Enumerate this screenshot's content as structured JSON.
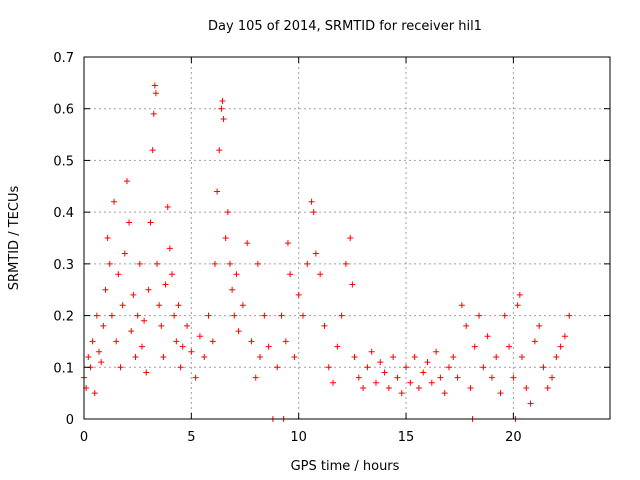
{
  "chart_data": {
    "type": "scatter",
    "title": "Day 105 of 2014, SRMTID for receiver hil1",
    "xlabel": "GPS time / hours",
    "ylabel": "SRMTID / TECUs",
    "xlim": [
      0,
      24.5
    ],
    "ylim": [
      0,
      0.7
    ],
    "xticks": [
      0,
      5,
      10,
      15,
      20
    ],
    "xtick_labels": [
      "0",
      "5",
      "10",
      "15",
      "20"
    ],
    "yticks": [
      0,
      0.1,
      0.2,
      0.3,
      0.4,
      0.5,
      0.6,
      0.7
    ],
    "ytick_labels": [
      "0",
      "0.1",
      "0.2",
      "0.3",
      "0.4",
      "0.5",
      "0.6",
      "0.7"
    ],
    "grid": true,
    "marker": "+",
    "series": [
      {
        "name": "SRMTID",
        "color": "#ff0000",
        "points": [
          [
            0.0,
            0.08
          ],
          [
            0.1,
            0.06
          ],
          [
            0.2,
            0.12
          ],
          [
            0.3,
            0.1
          ],
          [
            0.4,
            0.15
          ],
          [
            0.5,
            0.05
          ],
          [
            0.6,
            0.2
          ],
          [
            0.7,
            0.13
          ],
          [
            0.8,
            0.11
          ],
          [
            0.9,
            0.18
          ],
          [
            1.0,
            0.25
          ],
          [
            1.1,
            0.35
          ],
          [
            1.2,
            0.3
          ],
          [
            1.3,
            0.2
          ],
          [
            1.4,
            0.42
          ],
          [
            1.5,
            0.15
          ],
          [
            1.6,
            0.28
          ],
          [
            1.7,
            0.1
          ],
          [
            1.8,
            0.22
          ],
          [
            1.9,
            0.32
          ],
          [
            2.0,
            0.46
          ],
          [
            2.1,
            0.38
          ],
          [
            2.2,
            0.17
          ],
          [
            2.3,
            0.24
          ],
          [
            2.4,
            0.12
          ],
          [
            2.5,
            0.2
          ],
          [
            2.6,
            0.3
          ],
          [
            2.7,
            0.14
          ],
          [
            2.8,
            0.19
          ],
          [
            2.9,
            0.09
          ],
          [
            3.0,
            0.25
          ],
          [
            3.1,
            0.38
          ],
          [
            3.2,
            0.52
          ],
          [
            3.25,
            0.59
          ],
          [
            3.3,
            0.645
          ],
          [
            3.35,
            0.63
          ],
          [
            3.4,
            0.3
          ],
          [
            3.5,
            0.22
          ],
          [
            3.6,
            0.18
          ],
          [
            3.7,
            0.12
          ],
          [
            3.8,
            0.26
          ],
          [
            3.9,
            0.41
          ],
          [
            4.0,
            0.33
          ],
          [
            4.1,
            0.28
          ],
          [
            4.2,
            0.2
          ],
          [
            4.3,
            0.15
          ],
          [
            4.4,
            0.22
          ],
          [
            4.5,
            0.1
          ],
          [
            4.6,
            0.14
          ],
          [
            4.8,
            0.18
          ],
          [
            5.0,
            0.13
          ],
          [
            5.2,
            0.08
          ],
          [
            5.4,
            0.16
          ],
          [
            5.6,
            0.12
          ],
          [
            5.8,
            0.2
          ],
          [
            6.0,
            0.15
          ],
          [
            6.1,
            0.3
          ],
          [
            6.2,
            0.44
          ],
          [
            6.3,
            0.52
          ],
          [
            6.4,
            0.6
          ],
          [
            6.45,
            0.615
          ],
          [
            6.5,
            0.58
          ],
          [
            6.6,
            0.35
          ],
          [
            6.7,
            0.4
          ],
          [
            6.8,
            0.3
          ],
          [
            6.9,
            0.25
          ],
          [
            7.0,
            0.2
          ],
          [
            7.1,
            0.28
          ],
          [
            7.2,
            0.17
          ],
          [
            7.4,
            0.22
          ],
          [
            7.6,
            0.34
          ],
          [
            7.8,
            0.15
          ],
          [
            8.0,
            0.08
          ],
          [
            8.1,
            0.3
          ],
          [
            8.2,
            0.12
          ],
          [
            8.4,
            0.2
          ],
          [
            8.6,
            0.14
          ],
          [
            8.8,
            0.0
          ],
          [
            9.0,
            0.1
          ],
          [
            9.2,
            0.2
          ],
          [
            9.3,
            0.0
          ],
          [
            9.4,
            0.15
          ],
          [
            9.5,
            0.34
          ],
          [
            9.6,
            0.28
          ],
          [
            9.8,
            0.12
          ],
          [
            10.0,
            0.24
          ],
          [
            10.2,
            0.2
          ],
          [
            10.4,
            0.3
          ],
          [
            10.6,
            0.42
          ],
          [
            10.7,
            0.4
          ],
          [
            10.8,
            0.32
          ],
          [
            11.0,
            0.28
          ],
          [
            11.2,
            0.18
          ],
          [
            11.4,
            0.1
          ],
          [
            11.6,
            0.07
          ],
          [
            11.8,
            0.14
          ],
          [
            12.0,
            0.2
          ],
          [
            12.2,
            0.3
          ],
          [
            12.4,
            0.35
          ],
          [
            12.5,
            0.26
          ],
          [
            12.6,
            0.12
          ],
          [
            12.8,
            0.08
          ],
          [
            13.0,
            0.06
          ],
          [
            13.2,
            0.1
          ],
          [
            13.4,
            0.13
          ],
          [
            13.6,
            0.07
          ],
          [
            13.8,
            0.11
          ],
          [
            14.0,
            0.09
          ],
          [
            14.2,
            0.06
          ],
          [
            14.4,
            0.12
          ],
          [
            14.6,
            0.08
          ],
          [
            14.8,
            0.05
          ],
          [
            15.0,
            0.1
          ],
          [
            15.2,
            0.07
          ],
          [
            15.4,
            0.12
          ],
          [
            15.6,
            0.06
          ],
          [
            15.8,
            0.09
          ],
          [
            16.0,
            0.11
          ],
          [
            16.2,
            0.07
          ],
          [
            16.4,
            0.13
          ],
          [
            16.6,
            0.08
          ],
          [
            16.8,
            0.05
          ],
          [
            17.0,
            0.1
          ],
          [
            17.2,
            0.12
          ],
          [
            17.4,
            0.08
          ],
          [
            17.6,
            0.22
          ],
          [
            17.8,
            0.18
          ],
          [
            18.0,
            0.06
          ],
          [
            18.1,
            0.0
          ],
          [
            18.2,
            0.14
          ],
          [
            18.4,
            0.2
          ],
          [
            18.6,
            0.1
          ],
          [
            18.8,
            0.16
          ],
          [
            19.0,
            0.08
          ],
          [
            19.2,
            0.12
          ],
          [
            19.4,
            0.05
          ],
          [
            19.6,
            0.2
          ],
          [
            19.8,
            0.14
          ],
          [
            20.0,
            0.08
          ],
          [
            20.1,
            0.0
          ],
          [
            20.2,
            0.22
          ],
          [
            20.3,
            0.24
          ],
          [
            20.4,
            0.12
          ],
          [
            20.6,
            0.06
          ],
          [
            20.8,
            0.03
          ],
          [
            21.0,
            0.15
          ],
          [
            21.2,
            0.18
          ],
          [
            21.4,
            0.1
          ],
          [
            21.6,
            0.06
          ],
          [
            21.8,
            0.08
          ],
          [
            22.0,
            0.12
          ],
          [
            22.2,
            0.14
          ],
          [
            22.4,
            0.16
          ],
          [
            22.6,
            0.2
          ]
        ]
      }
    ]
  }
}
